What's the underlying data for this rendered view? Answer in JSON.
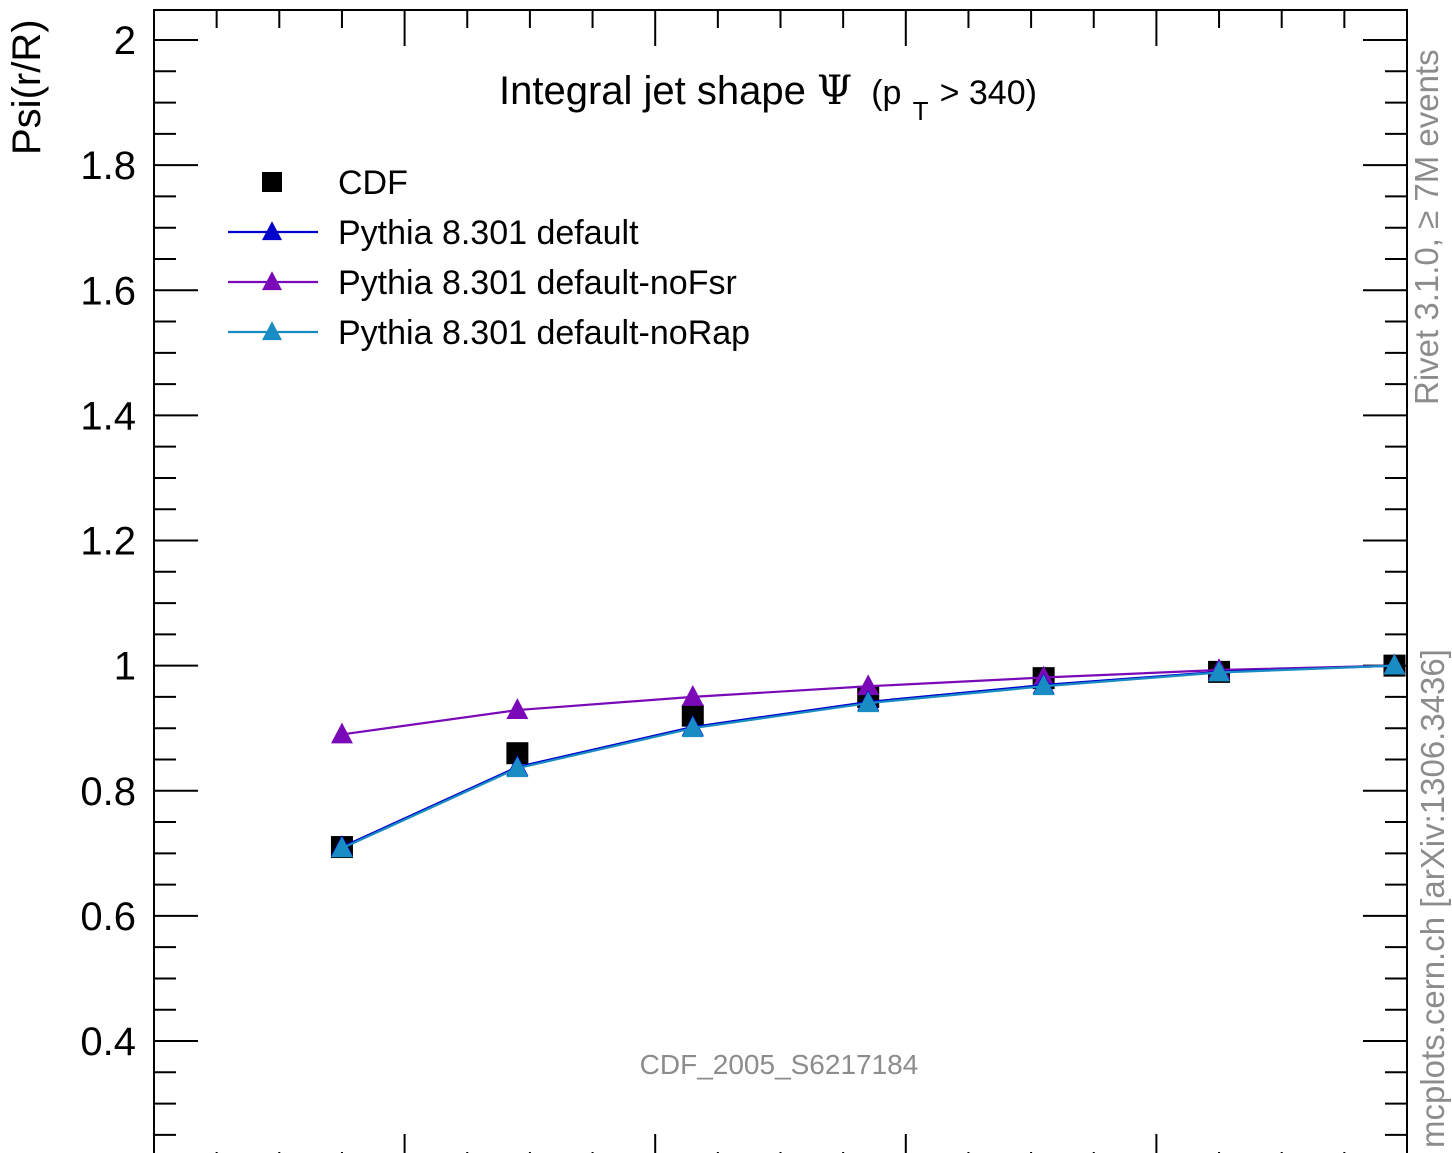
{
  "chart_data": {
    "type": "line",
    "title_main": "Integral jet shape",
    "title_symbol": "Ψ",
    "title_paren_open": "(p",
    "title_sub": "T",
    "title_paren_rest": " > 340)",
    "xlabel": "",
    "ylabel": "Psi(r/R)",
    "xlim": [
      0,
      1
    ],
    "ylim": [
      0.24,
      2.05
    ],
    "y_ticks": [
      "0.4",
      "0.6",
      "0.8",
      "1",
      "1.2",
      "1.4",
      "1.6",
      "1.8",
      "2"
    ],
    "y_tick_values": [
      0.4,
      0.6,
      0.8,
      1.0,
      1.2,
      1.4,
      1.6,
      1.8,
      2.0
    ],
    "grid": false,
    "legend_position": "top-left",
    "x": [
      0.15,
      0.29,
      0.43,
      0.57,
      0.71,
      0.85,
      0.99
    ],
    "series": [
      {
        "name": "CDF",
        "marker": "square",
        "color": "#000000",
        "line": false,
        "values": [
          0.71,
          0.86,
          0.92,
          0.95,
          0.98,
          0.99,
          1.0
        ]
      },
      {
        "name": "Pythia 8.301 default",
        "marker": "triangle",
        "color": "#0000cc",
        "line": true,
        "values": [
          0.71,
          0.838,
          0.902,
          0.942,
          0.969,
          0.99,
          1.0
        ]
      },
      {
        "name": "Pythia 8.301 default-noFsr",
        "marker": "triangle",
        "color": "#7a0ab8",
        "line": true,
        "values": [
          0.89,
          0.929,
          0.95,
          0.967,
          0.981,
          0.993,
          1.0
        ]
      },
      {
        "name": "Pythia 8.301 default-noRap",
        "marker": "triangle",
        "color": "#1a8cc4",
        "line": true,
        "values": [
          0.708,
          0.836,
          0.9,
          0.94,
          0.967,
          0.989,
          1.0
        ]
      }
    ],
    "annotations": {
      "analysis_id": "CDF_2005_S6217184",
      "rivet_label": "Rivet 3.1.0, ≥ 7M events",
      "mcplots_label": "mcplots.cern.ch [arXiv:1306.3436]"
    }
  }
}
